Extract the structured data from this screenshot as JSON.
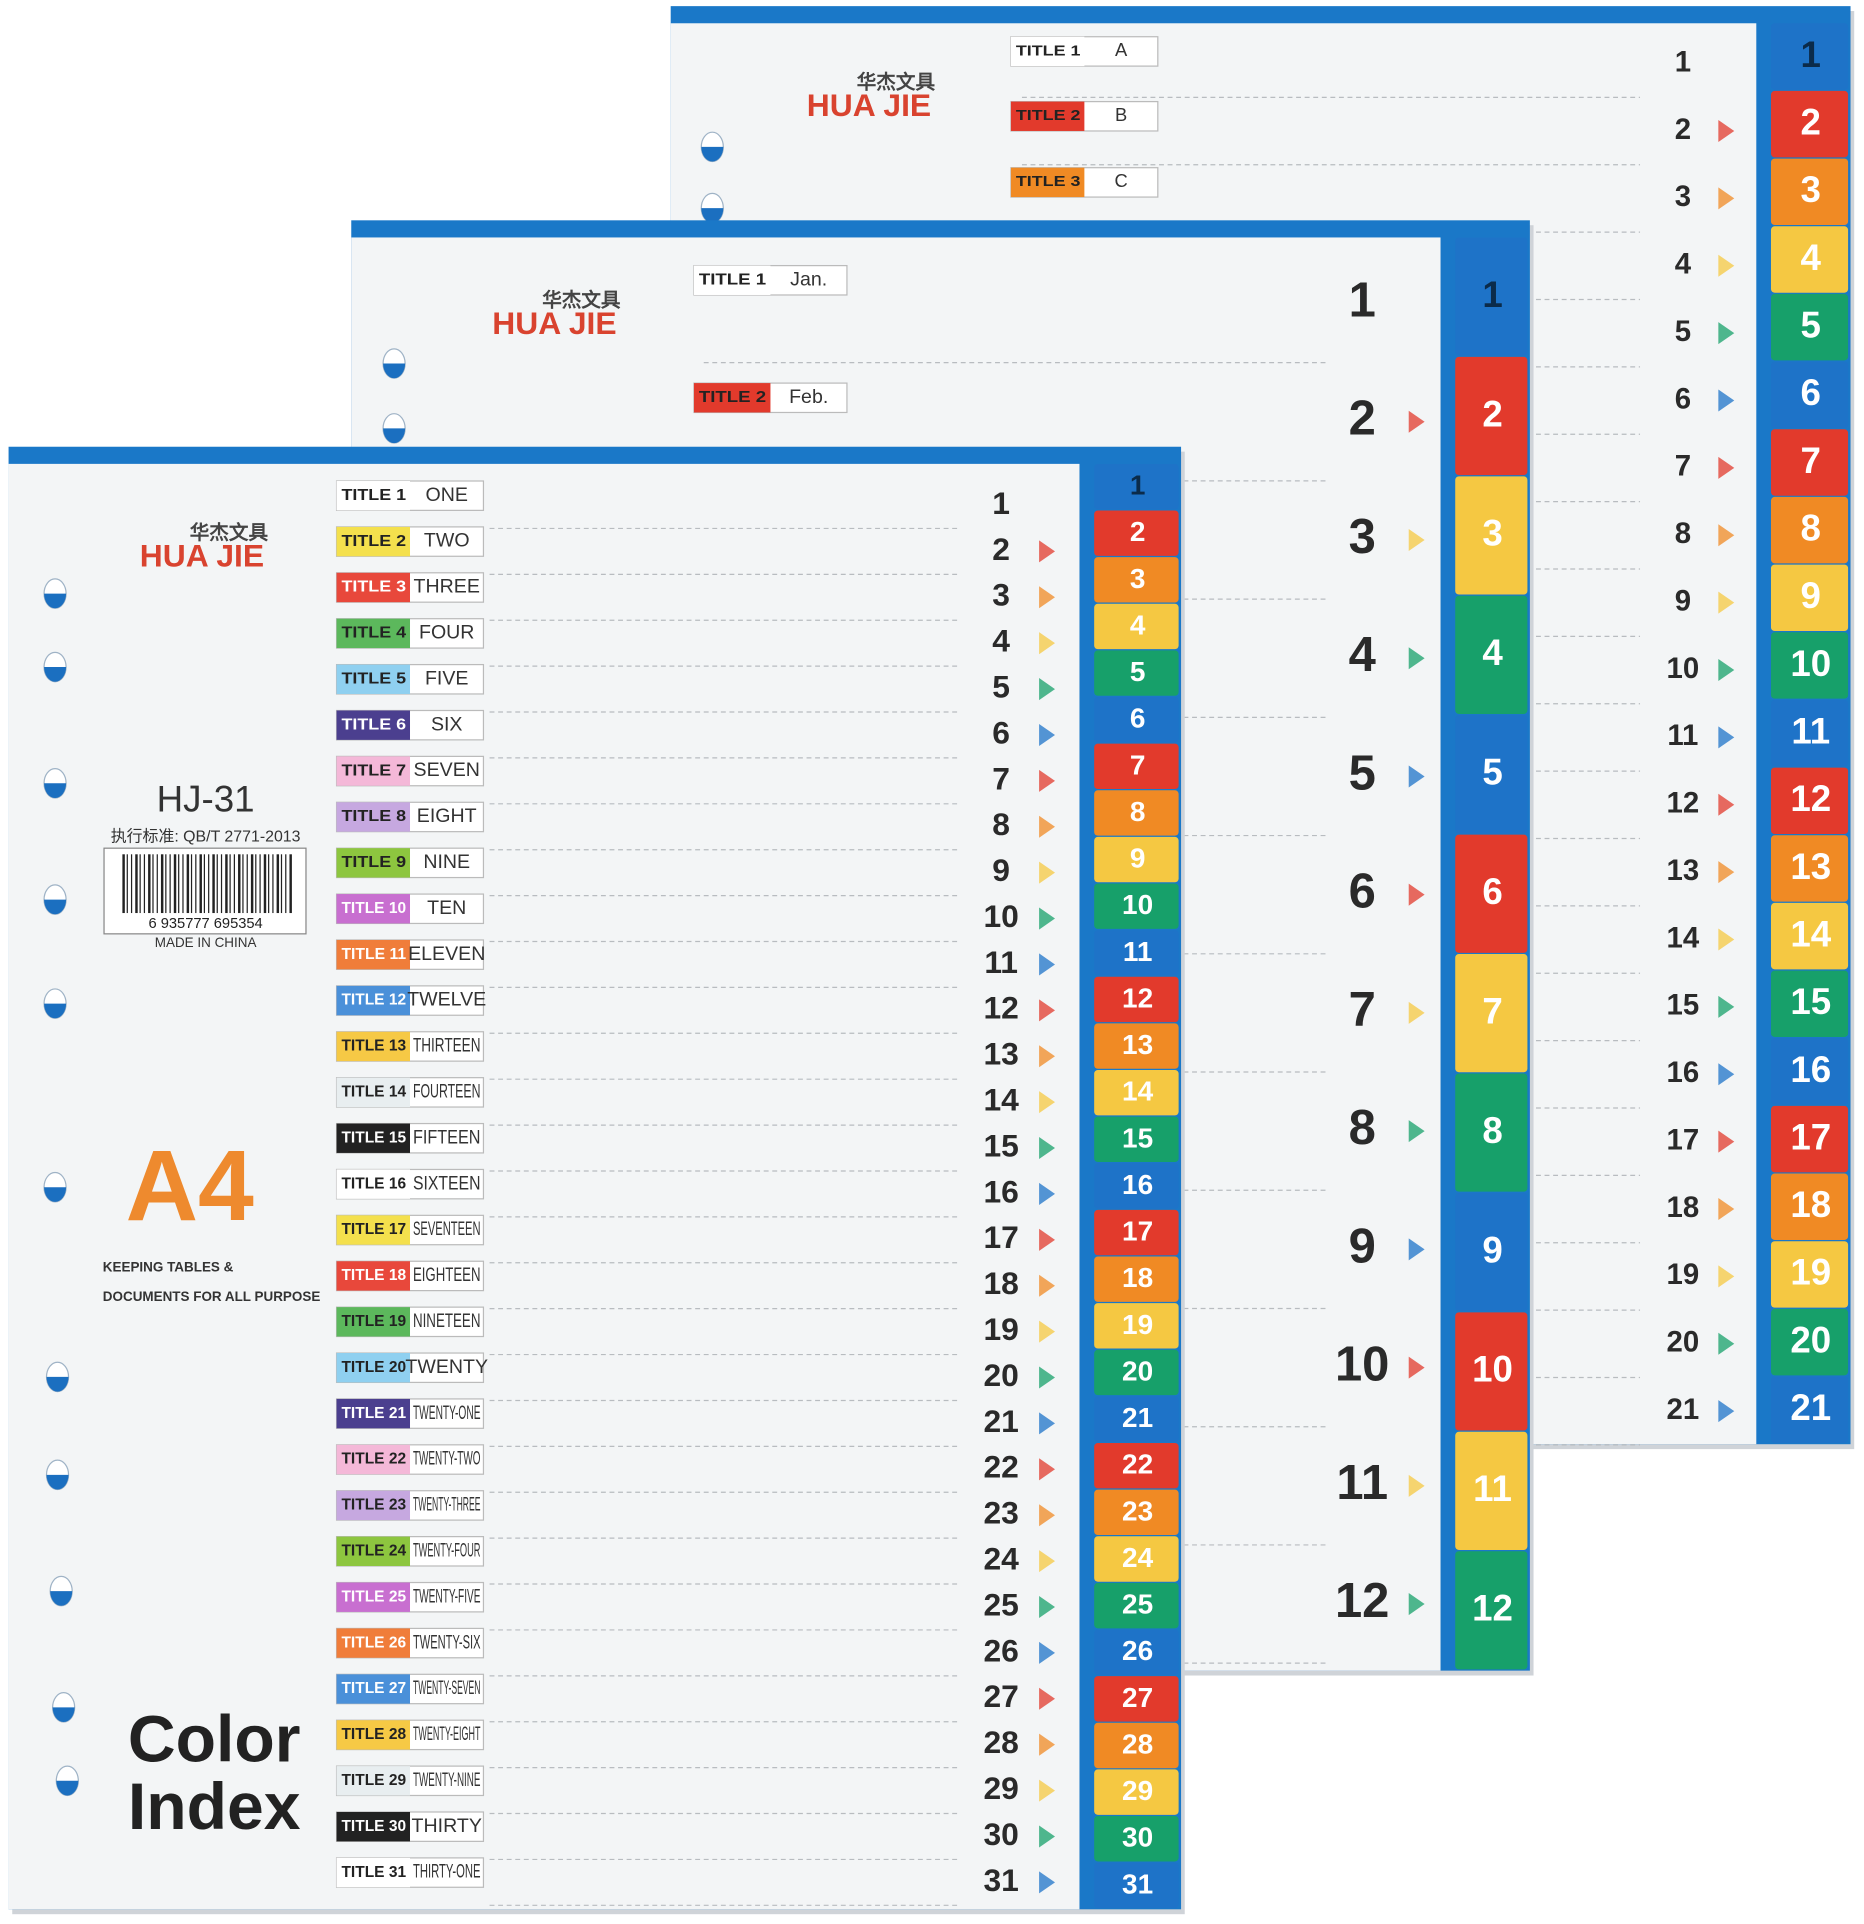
{
  "sheets": [
    {
      "brand_cn": "华杰文具",
      "brand": "HUA JIE",
      "titles": [
        {
          "label": "TITLE 1",
          "text": "A"
        },
        {
          "label": "TITLE 2",
          "text": "B"
        },
        {
          "label": "TITLE 3",
          "text": "C"
        }
      ],
      "numbers": [
        1,
        2,
        3,
        4,
        5,
        6,
        7,
        8,
        9,
        10,
        11,
        12,
        13,
        14,
        15,
        16,
        17,
        18,
        19,
        20,
        21
      ]
    },
    {
      "brand_cn": "华杰文具",
      "brand": "HUA JIE",
      "titles": [
        {
          "label": "TITLE 1",
          "text": "Jan."
        },
        {
          "label": "TITLE 2",
          "text": "Feb."
        }
      ],
      "numbers": [
        1,
        2,
        3,
        4,
        5,
        6,
        7,
        8,
        9,
        10,
        11,
        12
      ]
    },
    {
      "brand_cn": "华杰文具",
      "brand": "HUA JIE",
      "model": "HJ-31",
      "standard": "执行标准: QB/T 2771-2013",
      "barcode": "6 935777 695354",
      "origin": "MADE IN CHINA",
      "size": "A4",
      "tagline": [
        "KEEPING TABLES &",
        "DOCUMENTS FOR ALL PURPOSE"
      ],
      "product": [
        "Color",
        "Index"
      ],
      "titles": [
        {
          "label": "TITLE 1",
          "text": "ONE"
        },
        {
          "label": "TITLE 2",
          "text": "TWO"
        },
        {
          "label": "TITLE 3",
          "text": "THREE"
        },
        {
          "label": "TITLE 4",
          "text": "FOUR"
        },
        {
          "label": "TITLE 5",
          "text": "FIVE"
        },
        {
          "label": "TITLE 6",
          "text": "SIX"
        },
        {
          "label": "TITLE 7",
          "text": "SEVEN"
        },
        {
          "label": "TITLE 8",
          "text": "EIGHT"
        },
        {
          "label": "TITLE 9",
          "text": "NINE"
        },
        {
          "label": "TITLE 10",
          "text": "TEN"
        },
        {
          "label": "TITLE 11",
          "text": "ELEVEN"
        },
        {
          "label": "TITLE 12",
          "text": "TWELVE"
        },
        {
          "label": "TITLE 13",
          "text": "THIRTEEN"
        },
        {
          "label": "TITLE 14",
          "text": "FOURTEEN"
        },
        {
          "label": "TITLE 15",
          "text": "FIFTEEN"
        },
        {
          "label": "TITLE 16",
          "text": "SIXTEEN"
        },
        {
          "label": "TITLE 17",
          "text": "SEVENTEEN"
        },
        {
          "label": "TITLE 18",
          "text": "EIGHTEEN"
        },
        {
          "label": "TITLE 19",
          "text": "NINETEEN"
        },
        {
          "label": "TITLE 20",
          "text": "TWENTY"
        },
        {
          "label": "TITLE 21",
          "text": "TWENTY-ONE"
        },
        {
          "label": "TITLE 22",
          "text": "TWENTY-TWO"
        },
        {
          "label": "TITLE 23",
          "text": "TWENTY-THREE"
        },
        {
          "label": "TITLE 24",
          "text": "TWENTY-FOUR"
        },
        {
          "label": "TITLE 25",
          "text": "TWENTY-FIVE"
        },
        {
          "label": "TITLE 26",
          "text": "TWENTY-SIX"
        },
        {
          "label": "TITLE 27",
          "text": "TWENTY-SEVEN"
        },
        {
          "label": "TITLE 28",
          "text": "TWENTY-EIGHT"
        },
        {
          "label": "TITLE 29",
          "text": "TWENTY-NINE"
        },
        {
          "label": "TITLE 30",
          "text": "THIRTY"
        },
        {
          "label": "TITLE 31",
          "text": "THIRTY-ONE"
        }
      ],
      "numbers": [
        1,
        2,
        3,
        4,
        5,
        6,
        7,
        8,
        9,
        10,
        11,
        12,
        13,
        14,
        15,
        16,
        17,
        18,
        19,
        20,
        21,
        22,
        23,
        24,
        25,
        26,
        27,
        28,
        29,
        30,
        31
      ]
    }
  ]
}
